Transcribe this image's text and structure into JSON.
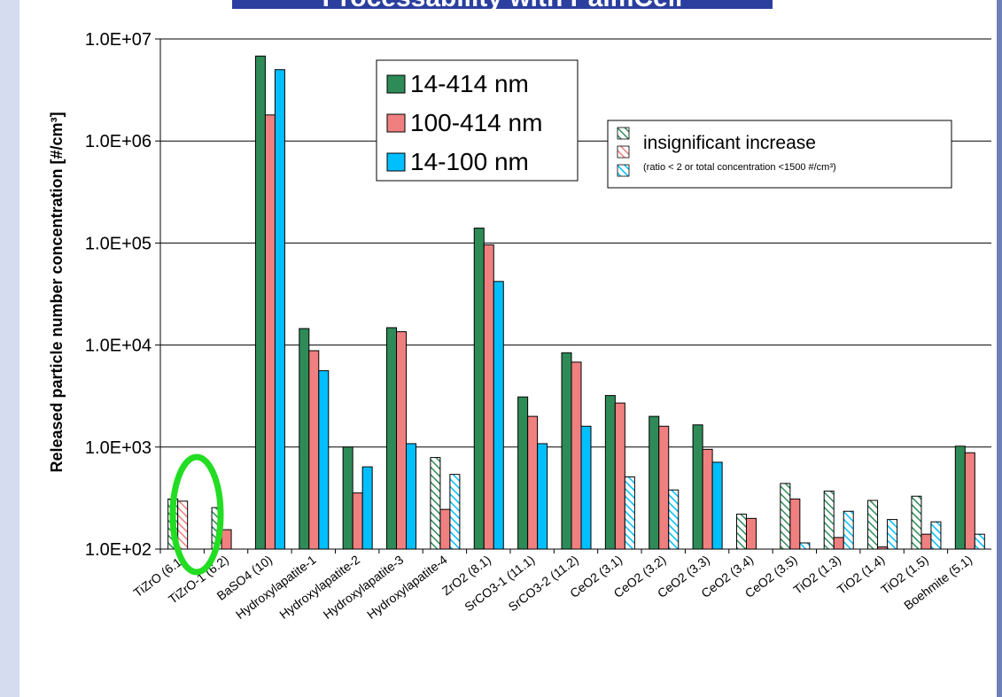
{
  "page_title": "Processability with PalmCell",
  "chart_data": {
    "type": "bar",
    "yscale": "log",
    "ylim": [
      100,
      10000000
    ],
    "ylabel": "Released particle number concentration [#/cm³]",
    "ytick_labels": [
      "1.0E+02",
      "1.0E+03",
      "1.0E+04",
      "1.0E+05",
      "1.0E+06",
      "1.0E+07"
    ],
    "grid": true,
    "categories": [
      "TiZrO (6.1)",
      "TiZrO-1 (6.2)",
      "BaSO4 (10)",
      "Hydroxylapatite-1",
      "Hydroxylapatite-2",
      "Hydroxylapatite-3",
      "Hydroxylapatite-4",
      "ZrO2 (8.1)",
      "SrCO3-1 (11.1)",
      "SrCO3-2 (11.2)",
      "CeO2 (3.1)",
      "CeO2 (3.2)",
      "CeO2 (3.3)",
      "CeO2 (3.4)",
      "CeO2 (3.5)",
      "TiO2 (1.3)",
      "TiO2 (1.4)",
      "TiO2 (1.5)",
      "Boehmite (5.1)"
    ],
    "series": [
      {
        "name": "14-414 nm",
        "color": "#2e8b57",
        "values": [
          310,
          255,
          6800000,
          14500,
          1000,
          14800,
          790,
          140000,
          3100,
          8400,
          3200,
          2000,
          1650,
          220,
          440,
          370,
          300,
          330,
          1020
        ],
        "insignificant": [
          true,
          true,
          false,
          false,
          false,
          false,
          true,
          false,
          false,
          false,
          false,
          false,
          false,
          true,
          true,
          true,
          true,
          true,
          false
        ]
      },
      {
        "name": "100-414 nm",
        "color": "#f08080",
        "values": [
          295,
          155,
          1800000,
          8800,
          355,
          13500,
          245,
          96000,
          2000,
          6800,
          2700,
          1600,
          950,
          200,
          310,
          130,
          105,
          140,
          880
        ],
        "insignificant": [
          true,
          false,
          false,
          false,
          false,
          false,
          false,
          false,
          false,
          false,
          false,
          false,
          false,
          false,
          false,
          false,
          false,
          false,
          false
        ]
      },
      {
        "name": "14-100 nm",
        "color": "#00bfff",
        "values": [
          null,
          null,
          5000000,
          5600,
          640,
          1080,
          540,
          42000,
          1080,
          1600,
          510,
          380,
          710,
          null,
          115,
          235,
          195,
          185,
          140
        ],
        "insignificant": [
          false,
          false,
          false,
          false,
          false,
          false,
          true,
          false,
          false,
          false,
          true,
          true,
          false,
          false,
          true,
          true,
          true,
          true,
          true
        ]
      }
    ],
    "legend_main": {
      "position": "top-center",
      "entries": [
        "14-414 nm",
        "100-414 nm",
        "14-100 nm"
      ]
    },
    "legend_insignificant": {
      "position": "top-right",
      "label": "insignificant increase",
      "note": "(ratio < 2 or total concentration <1500 #/cm³)"
    },
    "annotation": {
      "type": "ellipse",
      "color": "#22dd22",
      "target": "TiZrO (6.1)"
    }
  }
}
